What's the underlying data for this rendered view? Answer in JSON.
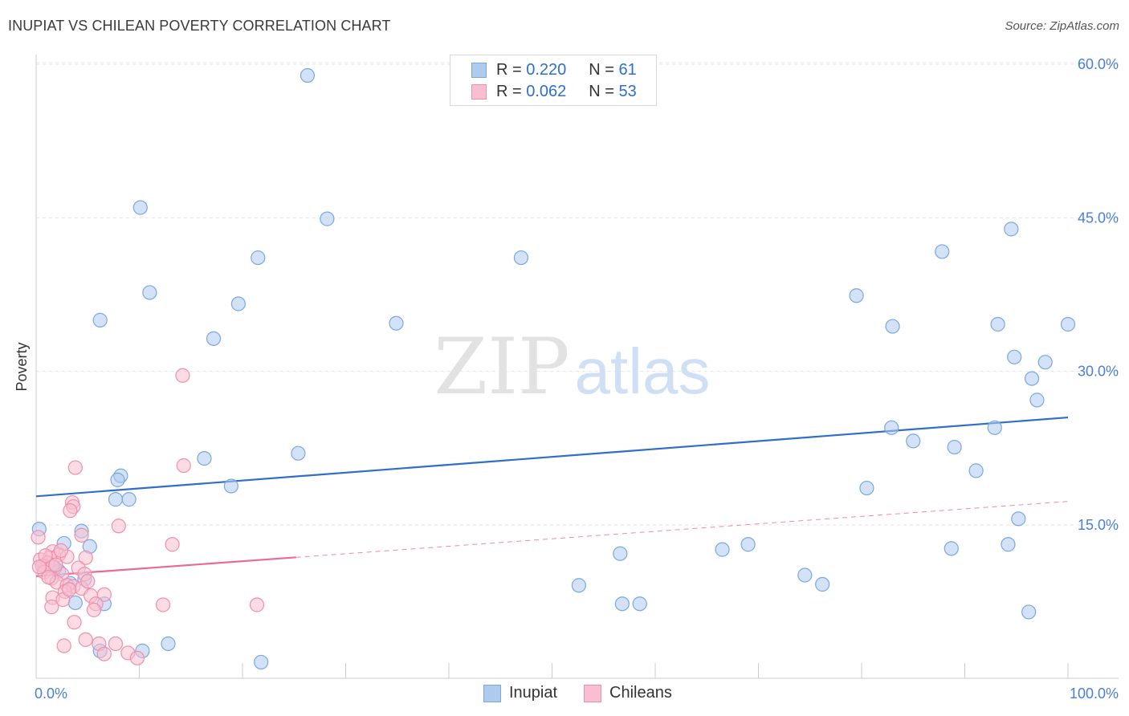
{
  "title": "INUPIAT VS CHILEAN POVERTY CORRELATION CHART",
  "source": "Source: ZipAtlas.com",
  "watermark": {
    "zip": "ZIP",
    "atlas": "atlas"
  },
  "legend": {
    "rows": [
      {
        "r_label": "R =",
        "r_value": "0.220",
        "n_label": "N =",
        "n_value": "61",
        "series": "Inupiat"
      },
      {
        "r_label": "R =",
        "r_value": "0.062",
        "n_label": "N =",
        "n_value": "53",
        "series": "Chileans"
      }
    ]
  },
  "bottom_legend": {
    "inupiat": "Inupiat",
    "chileans": "Chileans"
  },
  "colors": {
    "inupiat_fill": "#aecbee",
    "inupiat_stroke": "#7aa8dd",
    "inupiat_line": "#2f6fc9",
    "chileans_fill": "#f7bfd0",
    "chileans_stroke": "#ee8fad",
    "chileans_line": "#e86b94",
    "axis_label": "#4a7fd4",
    "grid": "#e6e6e6"
  },
  "chart_data": {
    "type": "scatter",
    "title": "INUPIAT VS CHILEAN POVERTY CORRELATION CHART",
    "xlabel": "",
    "ylabel": "Poverty",
    "xlim": [
      0,
      100
    ],
    "ylim": [
      0,
      63
    ],
    "x_tick_labels": [
      "0.0%",
      "100.0%"
    ],
    "y_ticks": [
      15,
      30,
      45,
      60
    ],
    "y_tick_labels": [
      "15.0%",
      "30.0%",
      "45.0%",
      "60.0%"
    ],
    "grid": true,
    "legend_position": "top-center",
    "series": [
      {
        "name": "Inupiat",
        "r": 0.22,
        "n": 61,
        "trend": {
          "x0": 0,
          "y0": 17.8,
          "x1": 100,
          "y1": 25.5,
          "solid_to": 100
        },
        "points": [
          [
            26.3,
            58.9
          ],
          [
            10.1,
            46.0
          ],
          [
            28.2,
            44.9
          ],
          [
            21.5,
            41.1
          ],
          [
            47.0,
            41.1
          ],
          [
            11.0,
            37.7
          ],
          [
            19.6,
            36.6
          ],
          [
            6.2,
            35.0
          ],
          [
            17.2,
            33.2
          ],
          [
            34.9,
            34.7
          ],
          [
            94.5,
            43.9
          ],
          [
            87.8,
            41.7
          ],
          [
            79.5,
            37.4
          ],
          [
            83.0,
            34.4
          ],
          [
            93.2,
            34.6
          ],
          [
            100.0,
            34.6
          ],
          [
            94.8,
            31.4
          ],
          [
            97.8,
            30.9
          ],
          [
            96.5,
            29.3
          ],
          [
            97.0,
            27.2
          ],
          [
            82.9,
            24.5
          ],
          [
            92.9,
            24.5
          ],
          [
            85.0,
            23.2
          ],
          [
            89.0,
            22.6
          ],
          [
            91.1,
            20.3
          ],
          [
            80.5,
            18.6
          ],
          [
            95.2,
            15.6
          ],
          [
            25.4,
            22.0
          ],
          [
            16.3,
            21.5
          ],
          [
            8.2,
            19.8
          ],
          [
            7.9,
            19.4
          ],
          [
            18.9,
            18.8
          ],
          [
            7.7,
            17.5
          ],
          [
            9.0,
            17.5
          ],
          [
            0.3,
            14.6
          ],
          [
            4.4,
            14.4
          ],
          [
            2.7,
            13.2
          ],
          [
            5.2,
            12.9
          ],
          [
            0.8,
            11.0
          ],
          [
            1.6,
            11.0
          ],
          [
            2.2,
            10.5
          ],
          [
            4.7,
            9.7
          ],
          [
            3.3,
            9.3
          ],
          [
            1.8,
            10.8
          ],
          [
            3.8,
            7.4
          ],
          [
            6.6,
            7.3
          ],
          [
            56.6,
            12.2
          ],
          [
            66.5,
            12.6
          ],
          [
            69.0,
            13.1
          ],
          [
            88.7,
            12.7
          ],
          [
            94.2,
            13.1
          ],
          [
            52.6,
            9.1
          ],
          [
            74.5,
            10.1
          ],
          [
            76.2,
            9.2
          ],
          [
            56.8,
            7.3
          ],
          [
            58.5,
            7.3
          ],
          [
            96.2,
            6.5
          ],
          [
            12.8,
            3.4
          ],
          [
            6.2,
            2.7
          ],
          [
            10.3,
            2.7
          ],
          [
            21.8,
            1.6
          ]
        ]
      },
      {
        "name": "Chileans",
        "r": 0.062,
        "n": 53,
        "trend": {
          "x0": 0,
          "y0": 10.0,
          "x1": 100,
          "y1": 17.3,
          "solid_to": 25.2
        },
        "points": [
          [
            14.2,
            29.6
          ],
          [
            3.8,
            20.6
          ],
          [
            14.3,
            20.8
          ],
          [
            3.5,
            17.2
          ],
          [
            3.6,
            16.8
          ],
          [
            3.3,
            16.4
          ],
          [
            8.0,
            14.9
          ],
          [
            4.4,
            14.0
          ],
          [
            13.2,
            13.1
          ],
          [
            0.2,
            13.8
          ],
          [
            1.6,
            12.4
          ],
          [
            2.2,
            12.1
          ],
          [
            1.3,
            11.8
          ],
          [
            3.0,
            11.9
          ],
          [
            4.8,
            11.8
          ],
          [
            0.4,
            11.6
          ],
          [
            1.1,
            11.3
          ],
          [
            0.6,
            11.0
          ],
          [
            1.6,
            10.9
          ],
          [
            4.1,
            10.8
          ],
          [
            0.8,
            10.4
          ],
          [
            2.5,
            10.2
          ],
          [
            4.7,
            10.2
          ],
          [
            1.5,
            9.8
          ],
          [
            2.0,
            9.4
          ],
          [
            3.0,
            9.1
          ],
          [
            3.6,
            9.0
          ],
          [
            4.4,
            8.8
          ],
          [
            2.8,
            8.5
          ],
          [
            5.3,
            8.1
          ],
          [
            6.6,
            8.2
          ],
          [
            1.6,
            7.9
          ],
          [
            2.6,
            7.7
          ],
          [
            5.8,
            7.3
          ],
          [
            12.3,
            7.2
          ],
          [
            21.4,
            7.2
          ],
          [
            1.5,
            7.0
          ],
          [
            5.6,
            6.7
          ],
          [
            3.7,
            5.5
          ],
          [
            4.8,
            3.8
          ],
          [
            6.1,
            3.4
          ],
          [
            7.7,
            3.4
          ],
          [
            2.7,
            3.2
          ],
          [
            6.6,
            2.4
          ],
          [
            8.9,
            2.5
          ],
          [
            9.8,
            2.0
          ],
          [
            0.9,
            12.0
          ],
          [
            2.4,
            12.5
          ],
          [
            0.3,
            10.9
          ],
          [
            1.9,
            11.1
          ],
          [
            3.2,
            8.7
          ],
          [
            5.0,
            9.5
          ],
          [
            1.2,
            9.9
          ]
        ]
      }
    ]
  }
}
